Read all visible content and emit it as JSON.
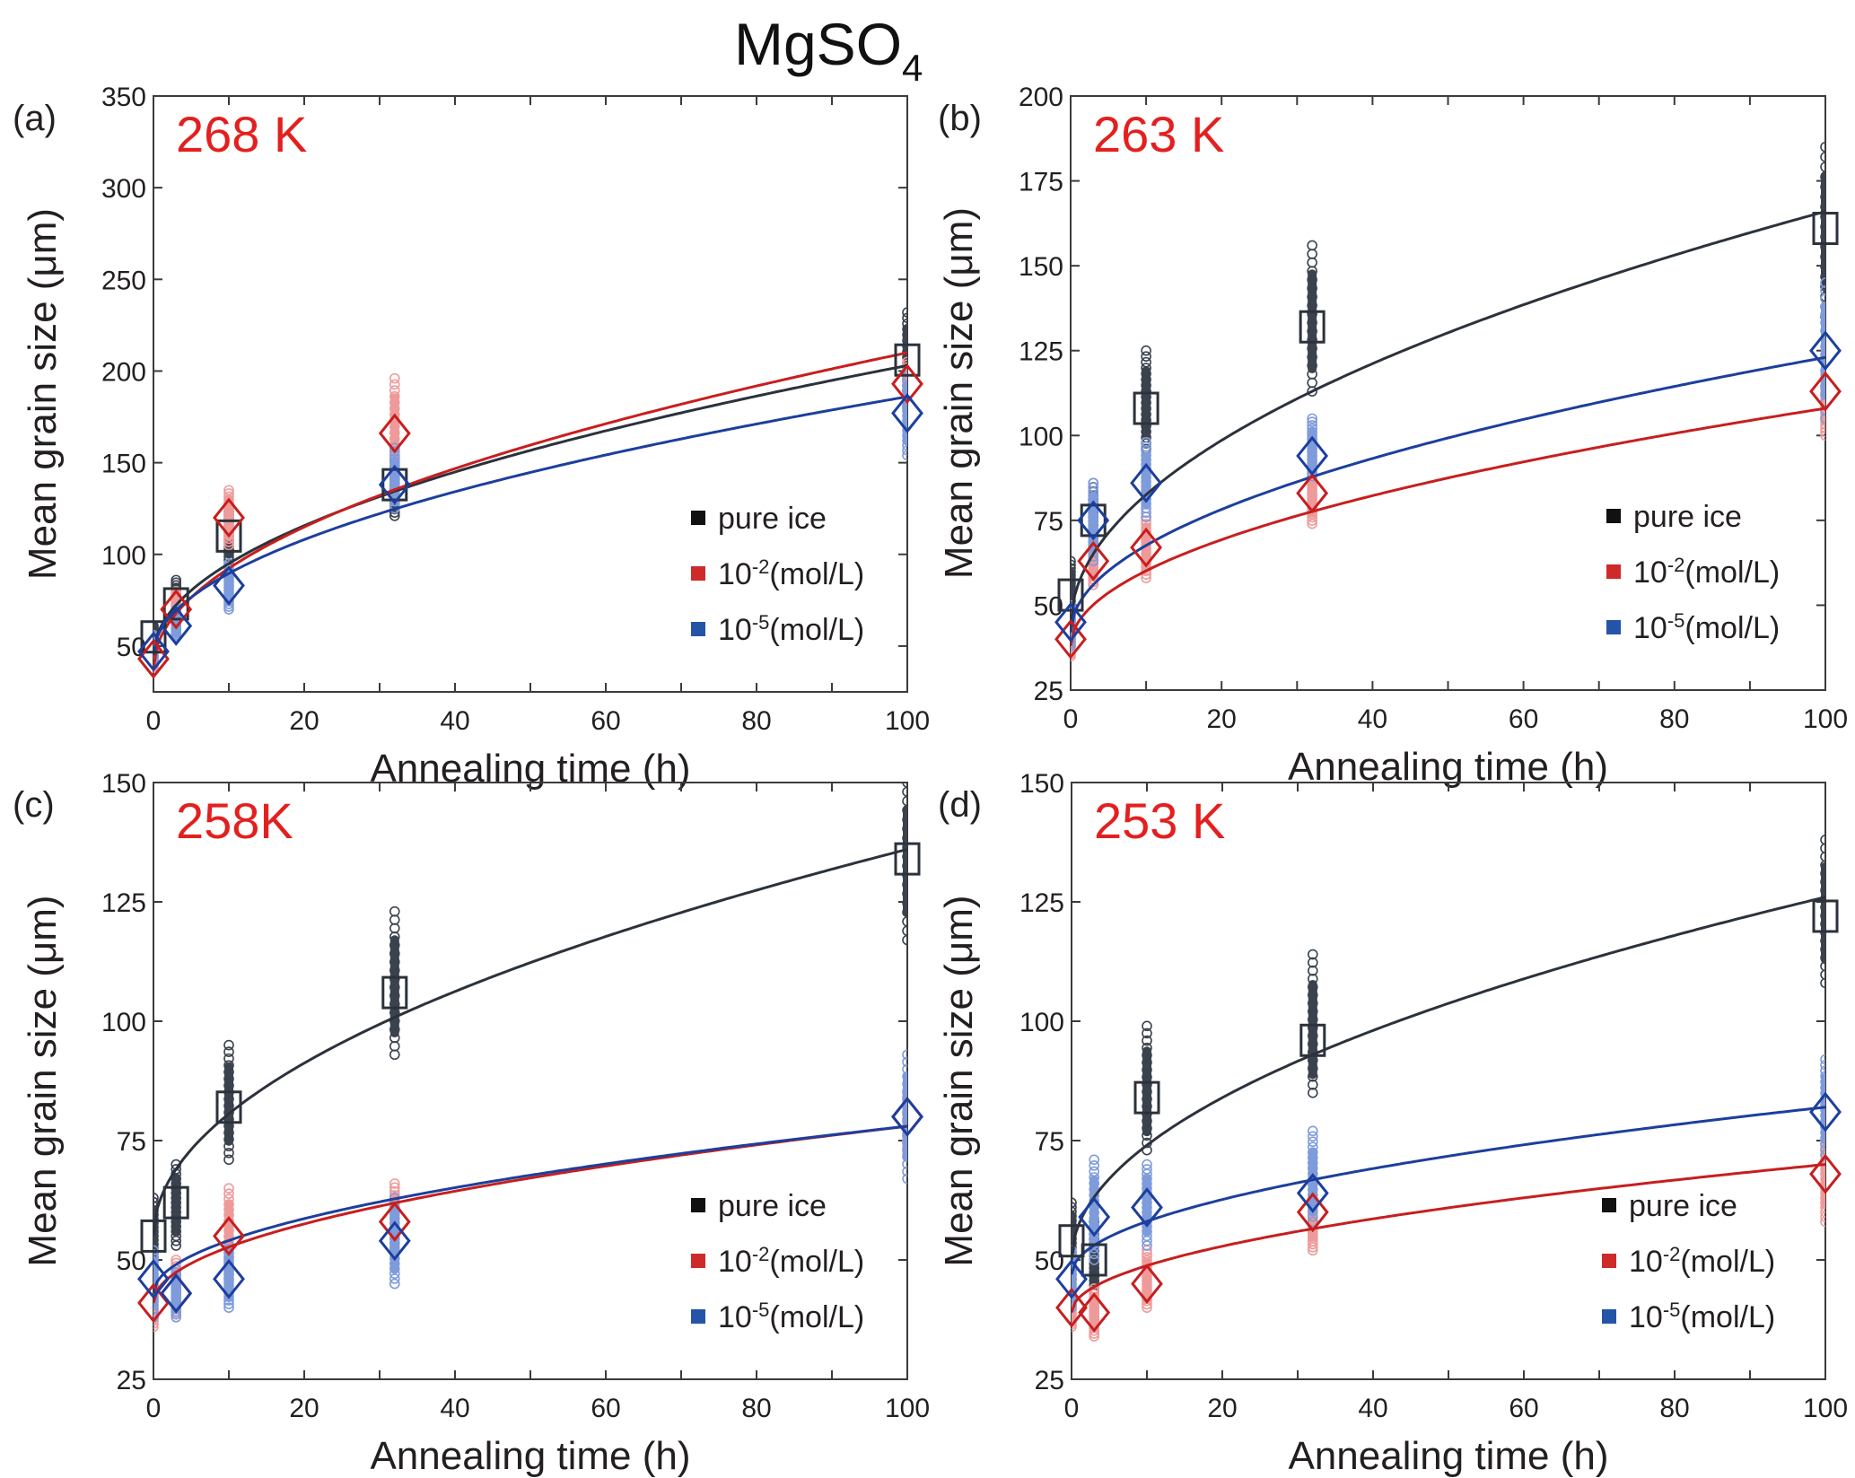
{
  "figure": {
    "title_main": "MgSO",
    "title_sub": "4"
  },
  "colors": {
    "pure_ice": "#2b323c",
    "pure_ice_scatter": "#3a424d",
    "high_conc": "#c81e1e",
    "high_conc_scatter": "#ef9a9a",
    "low_conc": "#1c3f9e",
    "low_conc_scatter": "#7e9bdb",
    "temperature_label": "#e3201f",
    "legend_black": "#111111",
    "legend_red": "#cf2a2a",
    "legend_blue": "#2454a8"
  },
  "legend": {
    "items": [
      {
        "key": "pure_ice",
        "label": "pure ice",
        "sup": "",
        "tail": ""
      },
      {
        "key": "high_conc",
        "label": "10",
        "sup": "-2",
        "tail": "(mol/L)"
      },
      {
        "key": "low_conc",
        "label": "10",
        "sup": "-5",
        "tail": "(mol/L)"
      }
    ]
  },
  "chart_data": [
    {
      "type": "scatter",
      "panel": "(a)",
      "annotation": "268 K",
      "title": "",
      "xlabel": "Annealing time (h)",
      "ylabel": "Mean grain size (μm)",
      "xlim": [
        0,
        100
      ],
      "ylim": [
        25,
        350
      ],
      "xticks": [
        0,
        10,
        20,
        30,
        40,
        50,
        60,
        70,
        80,
        90,
        100
      ],
      "xtick_labels": [
        "0",
        "",
        "20",
        "",
        "40",
        "",
        "60",
        "",
        "80",
        "",
        "100"
      ],
      "yticks": [
        50,
        100,
        150,
        200,
        250,
        300,
        350
      ],
      "ytick_labels": [
        "50",
        "100",
        "150",
        "200",
        "250",
        "300",
        "350"
      ],
      "grid": false,
      "legend_position": "bottom-right",
      "x": [
        0,
        3,
        10,
        32,
        100
      ],
      "series": [
        {
          "name": "pure ice",
          "key": "pure_ice",
          "marker": "square",
          "values": [
            55,
            73,
            110,
            138,
            206
          ],
          "spread_min": [
            48,
            62,
            95,
            121,
            180
          ],
          "spread_max": [
            61,
            86,
            127,
            152,
            232
          ],
          "fit_at_100": 203,
          "fit_at_0": 45
        },
        {
          "name": "10^-2 (mol/L)",
          "key": "high_conc",
          "marker": "diamond",
          "values": [
            43,
            70,
            120,
            166,
            193
          ],
          "spread_min": [
            38,
            62,
            105,
            140,
            180
          ],
          "spread_max": [
            50,
            80,
            135,
            196,
            205
          ],
          "fit_at_100": 210,
          "fit_at_0": 38
        },
        {
          "name": "10^-5 (mol/L)",
          "key": "low_conc",
          "marker": "diamond",
          "values": [
            47,
            61,
            83,
            138,
            177
          ],
          "spread_min": [
            40,
            55,
            70,
            125,
            154
          ],
          "spread_max": [
            56,
            70,
            95,
            158,
            200
          ],
          "fit_at_100": 186,
          "fit_at_0": 45
        }
      ]
    },
    {
      "type": "scatter",
      "panel": "(b)",
      "annotation": "263 K",
      "title": "",
      "xlabel": "Annealing time (h)",
      "ylabel": "Mean grain size (μm)",
      "xlim": [
        0,
        100
      ],
      "ylim": [
        25,
        200
      ],
      "xticks": [
        0,
        10,
        20,
        30,
        40,
        50,
        60,
        70,
        80,
        90,
        100
      ],
      "xtick_labels": [
        "0",
        "",
        "20",
        "",
        "40",
        "",
        "60",
        "",
        "80",
        "",
        "100"
      ],
      "yticks": [
        25,
        50,
        75,
        100,
        125,
        150,
        175,
        200
      ],
      "ytick_labels": [
        "25",
        "50",
        "75",
        "100",
        "125",
        "150",
        "175",
        "200"
      ],
      "grid": false,
      "legend_position": "bottom-right",
      "x": [
        0,
        3,
        10,
        32,
        100
      ],
      "series": [
        {
          "name": "pure ice",
          "key": "pure_ice",
          "marker": "square",
          "values": [
            53,
            75,
            108,
            132,
            161
          ],
          "spread_min": [
            45,
            65,
            96,
            113,
            135
          ],
          "spread_max": [
            63,
            86,
            125,
            156,
            185
          ],
          "fit_at_100": 166,
          "fit_at_0": 44
        },
        {
          "name": "10^-2 (mol/L)",
          "key": "high_conc",
          "marker": "diamond",
          "values": [
            40,
            63,
            67,
            83,
            113
          ],
          "spread_min": [
            35,
            56,
            58,
            74,
            100
          ],
          "spread_max": [
            46,
            70,
            76,
            90,
            118
          ],
          "fit_at_100": 108,
          "fit_at_0": 38
        },
        {
          "name": "10^-5 (mol/L)",
          "key": "low_conc",
          "marker": "diamond",
          "values": [
            45,
            75,
            86,
            94,
            125
          ],
          "spread_min": [
            38,
            63,
            76,
            88,
            105
          ],
          "spread_max": [
            50,
            86,
            98,
            105,
            145
          ],
          "fit_at_100": 123,
          "fit_at_0": 42
        }
      ]
    },
    {
      "type": "scatter",
      "panel": "(c)",
      "annotation": "258K",
      "title": "",
      "xlabel": "Annealing time (h)",
      "ylabel": "Mean grain size (μm)",
      "xlim": [
        0,
        100
      ],
      "ylim": [
        25,
        150
      ],
      "xticks": [
        0,
        10,
        20,
        30,
        40,
        50,
        60,
        70,
        80,
        90,
        100
      ],
      "xtick_labels": [
        "0",
        "",
        "20",
        "",
        "40",
        "",
        "60",
        "",
        "80",
        "",
        "100"
      ],
      "yticks": [
        25,
        50,
        75,
        100,
        125,
        150
      ],
      "ytick_labels": [
        "25",
        "50",
        "75",
        "100",
        "125",
        "150"
      ],
      "grid": false,
      "legend_position": "bottom-right",
      "x": [
        0,
        3,
        10,
        32,
        100
      ],
      "series": [
        {
          "name": "pure ice",
          "key": "pure_ice",
          "marker": "square",
          "values": [
            55,
            62,
            82,
            106,
            134
          ],
          "spread_min": [
            48,
            53,
            71,
            93,
            117
          ],
          "spread_max": [
            63,
            70,
            95,
            123,
            150
          ],
          "fit_at_100": 136,
          "fit_at_0": 55
        },
        {
          "name": "10^-2 (mol/L)",
          "key": "high_conc",
          "marker": "diamond",
          "values": [
            41,
            43,
            55,
            58,
            80
          ],
          "spread_min": [
            36,
            39,
            46,
            52,
            72
          ],
          "spread_max": [
            47,
            50,
            65,
            66,
            85
          ],
          "fit_at_100": 78,
          "fit_at_0": 41
        },
        {
          "name": "10^-5 (mol/L)",
          "key": "low_conc",
          "marker": "diamond",
          "values": [
            46,
            43,
            46,
            54,
            80
          ],
          "spread_min": [
            38,
            38,
            40,
            45,
            67
          ],
          "spread_max": [
            52,
            48,
            53,
            63,
            93
          ],
          "fit_at_100": 78,
          "fit_at_0": 43
        }
      ]
    },
    {
      "type": "scatter",
      "panel": "(d)",
      "annotation": "253 K",
      "title": "",
      "xlabel": "Annealing time (h)",
      "ylabel": "Mean grain size (μm)",
      "xlim": [
        0,
        100
      ],
      "ylim": [
        25,
        150
      ],
      "xticks": [
        0,
        10,
        20,
        30,
        40,
        50,
        60,
        70,
        80,
        90,
        100
      ],
      "xtick_labels": [
        "0",
        "",
        "20",
        "",
        "40",
        "",
        "60",
        "",
        "80",
        "",
        "100"
      ],
      "yticks": [
        25,
        50,
        75,
        100,
        125,
        150
      ],
      "ytick_labels": [
        "25",
        "50",
        "75",
        "100",
        "125",
        "150"
      ],
      "grid": false,
      "legend_position": "bottom-right",
      "x": [
        0,
        3,
        10,
        32,
        100
      ],
      "series": [
        {
          "name": "pure ice",
          "key": "pure_ice",
          "marker": "square",
          "values": [
            54,
            50,
            84,
            96,
            122
          ],
          "spread_min": [
            46,
            43,
            73,
            85,
            108
          ],
          "spread_max": [
            62,
            58,
            99,
            114,
            138
          ],
          "fit_at_100": 126,
          "fit_at_0": 50
        },
        {
          "name": "10^-2 (mol/L)",
          "key": "high_conc",
          "marker": "diamond",
          "values": [
            40,
            39,
            45,
            60,
            68
          ],
          "spread_min": [
            36,
            34,
            40,
            52,
            58
          ],
          "spread_max": [
            45,
            44,
            52,
            63,
            75
          ],
          "fit_at_100": 70,
          "fit_at_0": 39
        },
        {
          "name": "10^-5 (mol/L)",
          "key": "low_conc",
          "marker": "diamond",
          "values": [
            46,
            59,
            61,
            64,
            81
          ],
          "spread_min": [
            40,
            50,
            53,
            58,
            72
          ],
          "spread_max": [
            52,
            71,
            70,
            77,
            92
          ],
          "fit_at_100": 82,
          "fit_at_0": 47
        }
      ]
    }
  ]
}
